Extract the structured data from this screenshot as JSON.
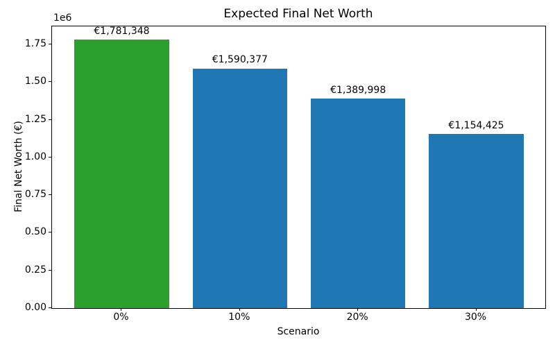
{
  "chart_data": {
    "type": "bar",
    "title": "Expected Final Net Worth",
    "xlabel": "Scenario",
    "ylabel": "Final Net Worth (€)",
    "categories": [
      "0%",
      "10%",
      "20%",
      "30%"
    ],
    "values": [
      1781348,
      1590377,
      1389998,
      1154425
    ],
    "bar_labels": [
      "€1,781,348",
      "€1,590,377",
      "€1,389,998",
      "€1,154,425"
    ],
    "bar_colors": [
      "#2ca02c",
      "#1f77b4",
      "#1f77b4",
      "#1f77b4"
    ],
    "ylim": [
      0,
      1870415
    ],
    "yticks": [
      0,
      250000,
      500000,
      750000,
      1000000,
      1250000,
      1500000,
      1750000
    ],
    "ytick_labels": [
      "0.00",
      "0.25",
      "0.50",
      "0.75",
      "1.00",
      "1.25",
      "1.50",
      "1.75"
    ],
    "y_offset_text": "1e6",
    "grid": false,
    "legend_position": "none",
    "colors": {
      "highlight_bar": "#2ca02c",
      "default_bar": "#1f77b4",
      "axis": "#000000",
      "background": "#ffffff"
    }
  }
}
